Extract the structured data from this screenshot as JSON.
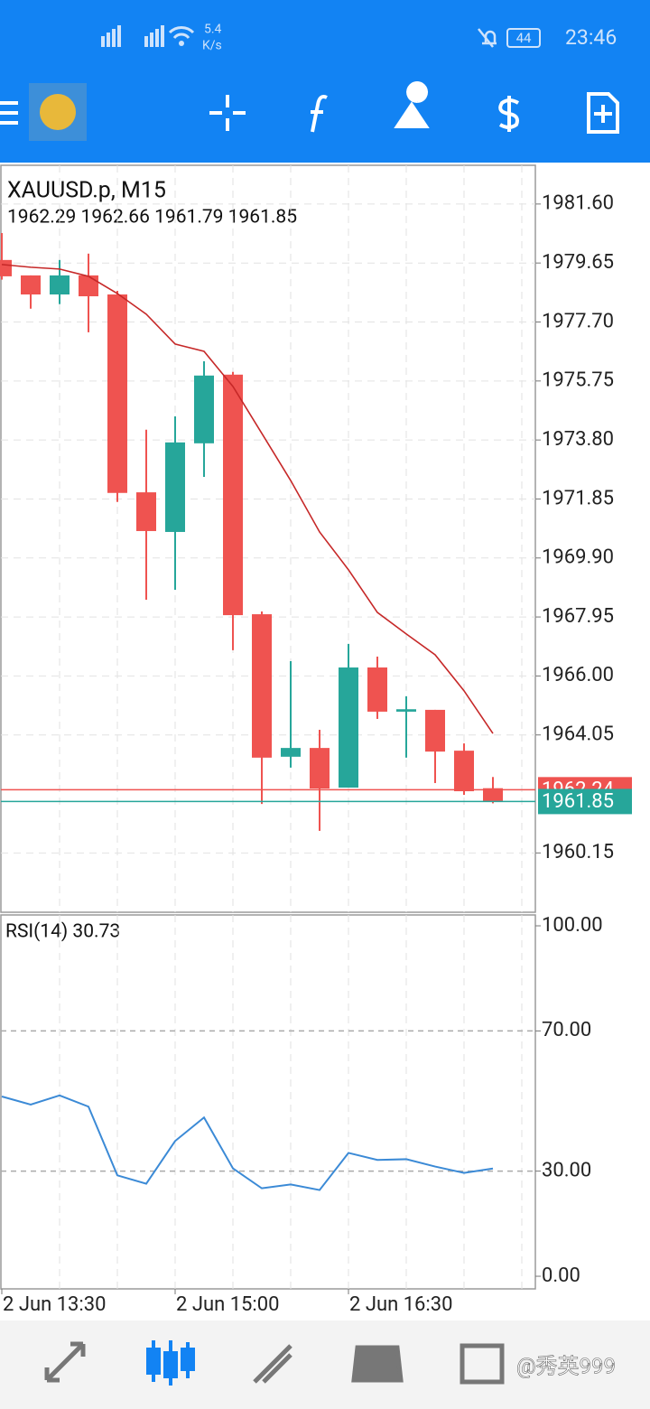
{
  "status_bar": {
    "speed": "5.4",
    "speed_unit": "K/s",
    "battery": "44",
    "time": "23:46"
  },
  "chart_data": [
    {
      "type": "candlestick",
      "title": "XAUUSD.p, M15",
      "subtitle": "1962.29 1962.66 1961.79 1961.85",
      "categories": [
        "2 Jun 13:30",
        null,
        null,
        null,
        null,
        null,
        "2 Jun 15:00",
        null,
        null,
        null,
        null,
        null,
        "2 Jun 16:30",
        null,
        null,
        null,
        null,
        null
      ],
      "open": [
        1979.75,
        1979.24,
        1978.61,
        1979.24,
        1978.61,
        1972.07,
        1970.76,
        1973.69,
        1975.96,
        1968.04,
        1963.33,
        1963.62,
        1962.31,
        1966.28,
        1964.82,
        1964.88,
        1963.53,
        1962.29
      ],
      "high": [
        1980.64,
        1979.24,
        1979.75,
        1979.96,
        1978.73,
        1974.14,
        1974.58,
        1976.4,
        1976.05,
        1968.13,
        1966.49,
        1964.22,
        1967.06,
        1966.64,
        1965.33,
        1964.88,
        1963.77,
        1962.66
      ],
      "low": [
        1979.1,
        1978.14,
        1978.29,
        1977.36,
        1971.75,
        1968.52,
        1968.85,
        1972.58,
        1966.85,
        1961.77,
        1962.97,
        1960.88,
        1962.31,
        1964.58,
        1963.3,
        1962.46,
        1962.07,
        1961.79
      ],
      "close": [
        1979.21,
        1978.61,
        1979.24,
        1978.55,
        1972.05,
        1970.79,
        1973.72,
        1975.93,
        1968.01,
        1963.3,
        1963.62,
        1962.28,
        1966.28,
        1964.82,
        1964.9,
        1963.5,
        1962.19,
        1961.85
      ],
      "up_color": "#26a69a",
      "down_color": "#ef5350",
      "ma": {
        "color": "#c62828",
        "values": [
          1979.6,
          1979.51,
          1979.45,
          1979.21,
          1978.64,
          1977.96,
          1976.97,
          1976.73,
          1975.57,
          1974.02,
          1972.46,
          1970.76,
          1969.51,
          1968.1,
          1967.39,
          1966.7,
          1965.51,
          1964.1
        ]
      },
      "price_lines": [
        {
          "value": 1962.24,
          "color": "#ef5350"
        },
        {
          "value": 1961.85,
          "color": "#26a69a"
        }
      ],
      "ylim": [
        1958.19,
        1982.88
      ],
      "yticks": [
        {
          "value": 1981.6,
          "label": "1981.60"
        },
        1979.65,
        {
          "value": 1977.7,
          "label": "1977.70"
        },
        1975.75,
        {
          "value": 1973.8,
          "label": "1973.80"
        },
        1971.85,
        {
          "value": 1969.9,
          "label": "1969.90"
        },
        1967.95,
        {
          "value": 1966,
          "label": "1966.00"
        },
        1964.05,
        1960.15
      ],
      "grid": true
    },
    {
      "type": "line",
      "title": "RSI(14) 30.73",
      "color": "#3b8ad6",
      "values": [
        51.3,
        49.0,
        51.6,
        48.4,
        28.8,
        26.4,
        38.6,
        45.3,
        30.8,
        25.1,
        26.2,
        24.6,
        35.2,
        33.2,
        33.4,
        31.3,
        29.5,
        30.73
      ],
      "ylim": [
        -3.6,
        103.1
      ],
      "yticks": [
        {
          "value": 0,
          "label": "0.00"
        },
        {
          "value": 30,
          "label": "30.00"
        },
        {
          "value": 70,
          "label": "70.00"
        },
        {
          "value": 100,
          "label": "100.00"
        }
      ],
      "levels": [
        30,
        70
      ],
      "grid": true
    }
  ],
  "watermark": "@秀英999"
}
